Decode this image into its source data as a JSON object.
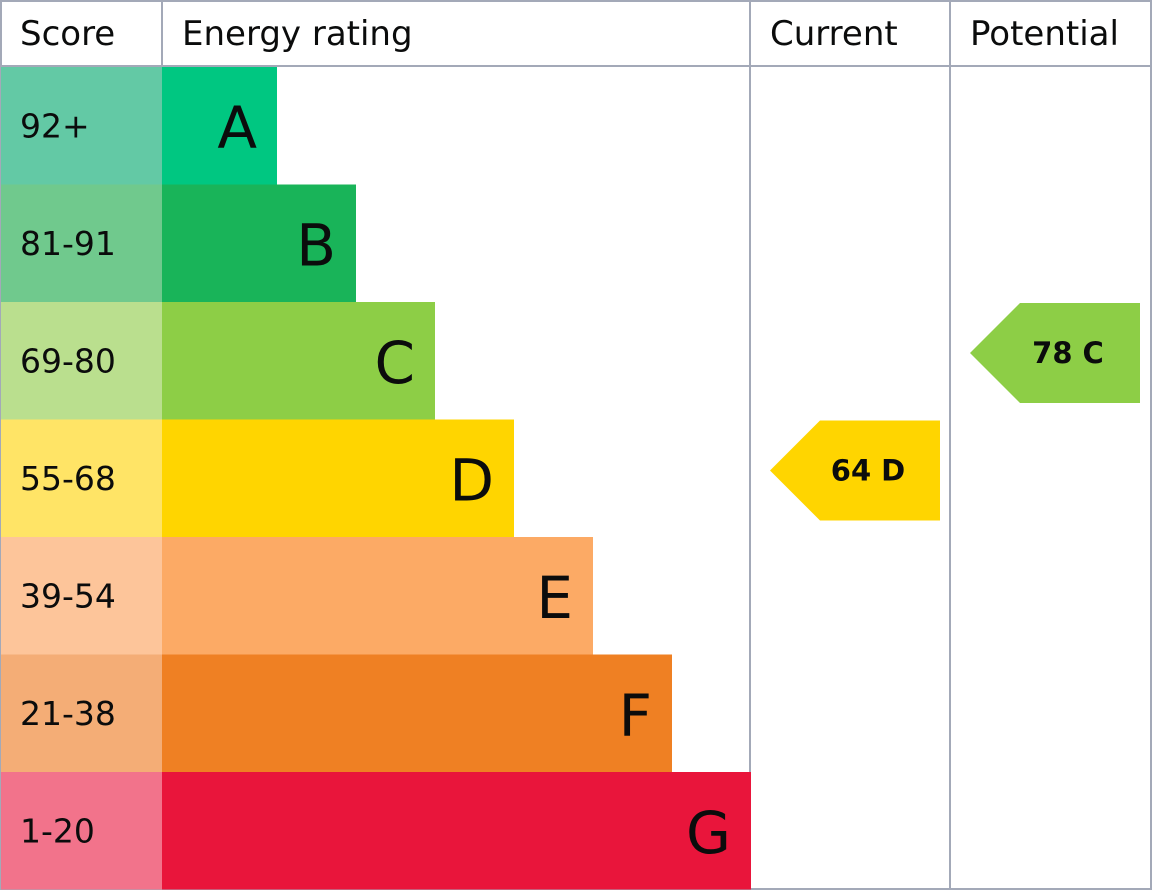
{
  "header": {
    "score": "Score",
    "rating": "Energy rating",
    "current": "Current",
    "potential": "Potential"
  },
  "bands": [
    {
      "score": "92+",
      "letter": "A",
      "color": "#00c781",
      "light": "#63c9a5"
    },
    {
      "score": "81-91",
      "letter": "B",
      "color": "#19b459",
      "light": "#70c98d"
    },
    {
      "score": "69-80",
      "letter": "C",
      "color": "#8dce46",
      "light": "#badf8e"
    },
    {
      "score": "55-68",
      "letter": "D",
      "color": "#ffd500",
      "light": "#ffe466"
    },
    {
      "score": "39-54",
      "letter": "E",
      "color": "#fcaa65",
      "light": "#fdc59a"
    },
    {
      "score": "21-38",
      "letter": "F",
      "color": "#ef8023",
      "light": "#f4ad76"
    },
    {
      "score": "1-20",
      "letter": "G",
      "color": "#e9153b",
      "light": "#f2738b"
    }
  ],
  "current": {
    "score": "64",
    "band": "D"
  },
  "potential": {
    "score": "78",
    "band": "C"
  }
}
